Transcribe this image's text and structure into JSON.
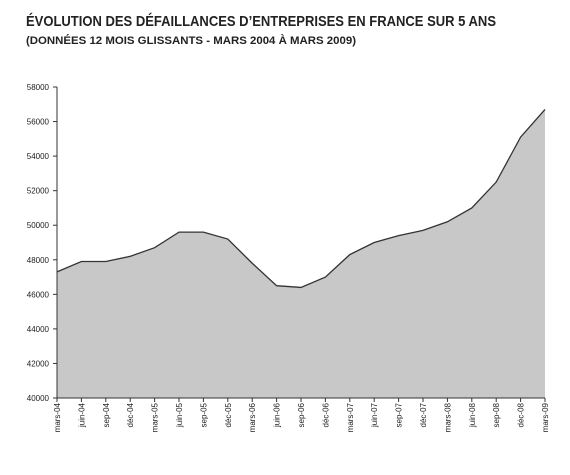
{
  "chart_data": {
    "type": "area",
    "title": "ÉVOLUTION DES DÉFAILLANCES D’ENTREPRISES EN FRANCE SUR 5 ANS",
    "subtitle": "(DONNÉES 12 MOIS GLISSANTS - MARS 2004 À MARS 2009)",
    "categories": [
      "mars-04",
      "juin-04",
      "sep-04",
      "déc-04",
      "mars-05",
      "juin-05",
      "sep-05",
      "déc-05",
      "mars-06",
      "juin-06",
      "sep-06",
      "déc-06",
      "mars-07",
      "juin-07",
      "sep-07",
      "déc-07",
      "mars-08",
      "juin-08",
      "sep-08",
      "déc-08",
      "mars-09"
    ],
    "values": [
      47300,
      47900,
      47900,
      48200,
      48700,
      49600,
      49600,
      49200,
      47800,
      46500,
      46400,
      47000,
      48300,
      49000,
      49400,
      49700,
      50200,
      51000,
      52500,
      55100,
      56700
    ],
    "color": "#c8c8c8",
    "ylim": [
      40000,
      58000
    ],
    "yticks": [
      40000,
      42000,
      44000,
      46000,
      48000,
      50000,
      52000,
      54000,
      56000,
      58000
    ]
  }
}
